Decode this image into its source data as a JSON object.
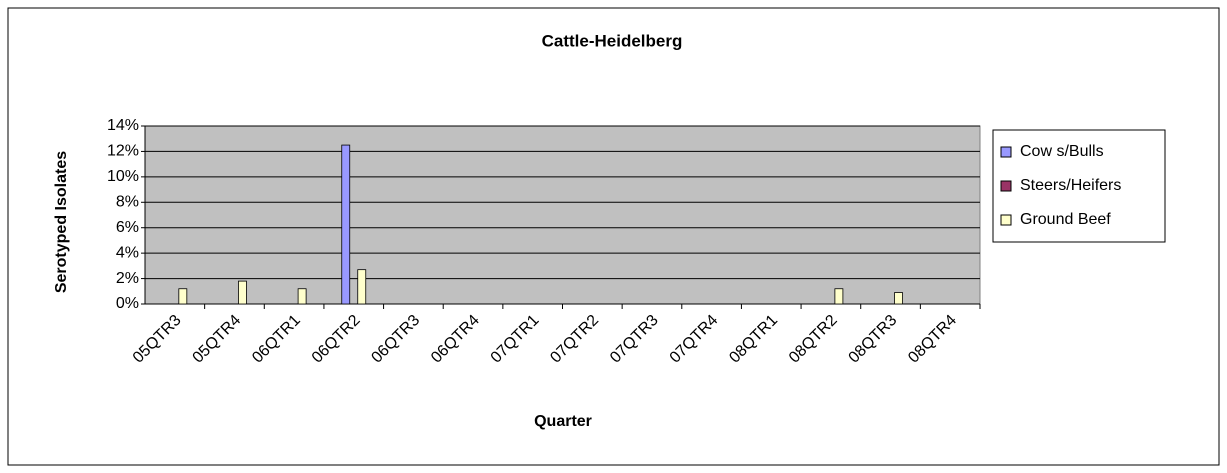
{
  "chart_data": {
    "type": "bar",
    "title": "Cattle-Heidelberg",
    "x_label": "Quarter",
    "y_label": "Serotyped Isolates",
    "categories": [
      "05QTR3",
      "05QTR4",
      "06QTR1",
      "06QTR2",
      "06QTR3",
      "06QTR4",
      "07QTR1",
      "07QTR2",
      "07QTR3",
      "07QTR4",
      "08QTR1",
      "08QTR2",
      "08QTR3",
      "08QTR4"
    ],
    "series": [
      {
        "name": "Cow s/Bulls",
        "color": "#9999ff",
        "values": [
          0,
          0,
          0,
          12.5,
          0,
          0,
          0,
          0,
          0,
          0,
          0,
          0,
          0,
          0
        ]
      },
      {
        "name": "Steers/Heifers",
        "color": "#993366",
        "values": [
          0,
          0,
          0,
          0,
          0,
          0,
          0,
          0,
          0,
          0,
          0,
          0,
          0,
          0
        ]
      },
      {
        "name": "Ground Beef",
        "color": "#ffffcc",
        "values": [
          1.2,
          1.8,
          1.2,
          2.7,
          0,
          0,
          0,
          0,
          0,
          0,
          0,
          1.2,
          0.9,
          0
        ]
      }
    ],
    "ylim": [
      0,
      14
    ],
    "yticks": [
      {
        "value": 0,
        "label": "0%"
      },
      {
        "value": 2,
        "label": "2%"
      },
      {
        "value": 4,
        "label": "4%"
      },
      {
        "value": 6,
        "label": "6%"
      },
      {
        "value": 8,
        "label": "8%"
      },
      {
        "value": 10,
        "label": "10%"
      },
      {
        "value": 12,
        "label": "12%"
      },
      {
        "value": 14,
        "label": "14%"
      }
    ],
    "grid": true,
    "legend": "right"
  }
}
